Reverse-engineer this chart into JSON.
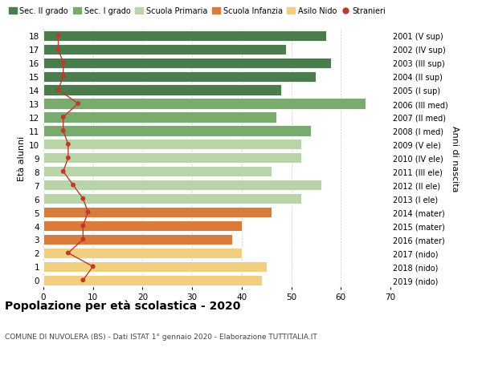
{
  "ages": [
    18,
    17,
    16,
    15,
    14,
    13,
    12,
    11,
    10,
    9,
    8,
    7,
    6,
    5,
    4,
    3,
    2,
    1,
    0
  ],
  "bar_values": [
    57,
    49,
    58,
    55,
    48,
    65,
    47,
    54,
    52,
    52,
    46,
    56,
    52,
    46,
    40,
    38,
    40,
    45,
    44
  ],
  "right_labels": [
    "2001 (V sup)",
    "2002 (IV sup)",
    "2003 (III sup)",
    "2004 (II sup)",
    "2005 (I sup)",
    "2006 (III med)",
    "2007 (II med)",
    "2008 (I med)",
    "2009 (V ele)",
    "2010 (IV ele)",
    "2011 (III ele)",
    "2012 (II ele)",
    "2013 (I ele)",
    "2014 (mater)",
    "2015 (mater)",
    "2016 (mater)",
    "2017 (nido)",
    "2018 (nido)",
    "2019 (nido)"
  ],
  "bar_colors": [
    "#4a7c4e",
    "#4a7c4e",
    "#4a7c4e",
    "#4a7c4e",
    "#4a7c4e",
    "#7aab6e",
    "#7aab6e",
    "#7aab6e",
    "#b8d4a8",
    "#b8d4a8",
    "#b8d4a8",
    "#b8d4a8",
    "#b8d4a8",
    "#d97b3a",
    "#d97b3a",
    "#d97b3a",
    "#f0d080",
    "#f0d080",
    "#f0d080"
  ],
  "stranieri_values": [
    3,
    3,
    4,
    4,
    3,
    7,
    4,
    4,
    5,
    5,
    4,
    6,
    8,
    9,
    8,
    8,
    5,
    10,
    8
  ],
  "legend_labels": [
    "Sec. II grado",
    "Sec. I grado",
    "Scuola Primaria",
    "Scuola Infanzia",
    "Asilo Nido",
    "Stranieri"
  ],
  "legend_colors": [
    "#4a7c4e",
    "#7aab6e",
    "#b8d4a8",
    "#d97b3a",
    "#f0d080",
    "#c0392b"
  ],
  "title": "Popolazione per età scolastica - 2020",
  "subtitle": "COMUNE DI NUVOLERA (BS) - Dati ISTAT 1° gennaio 2020 - Elaborazione TUTTITALIA.IT",
  "ylabel_left": "Età alunni",
  "ylabel_right": "Anni di nascita",
  "xlim": [
    0,
    70
  ],
  "background_color": "#ffffff",
  "bar_height": 0.78,
  "grid_color": "#cccccc",
  "stranieri_color": "#c0392b"
}
